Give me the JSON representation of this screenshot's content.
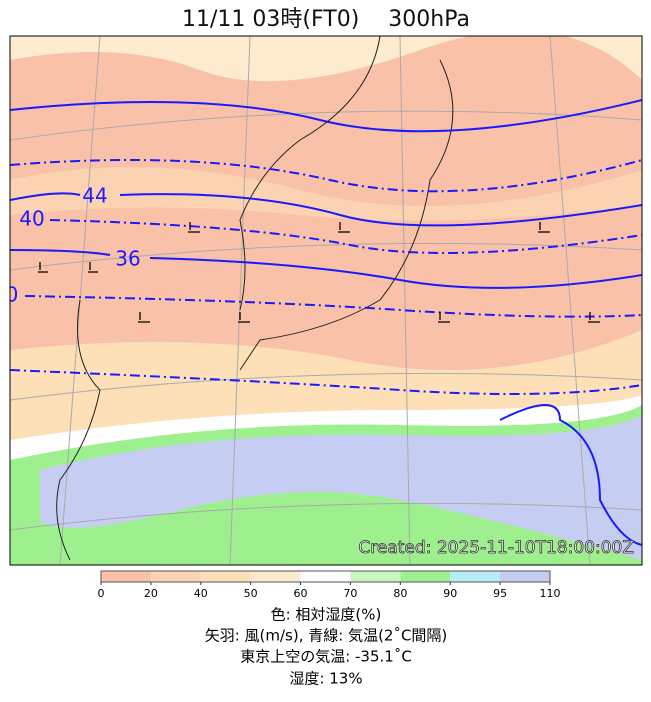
{
  "header": {
    "title": "11/11  03時(FT0)　 300hPa"
  },
  "map": {
    "contour_labels": [
      "44",
      "40",
      "36",
      "0"
    ],
    "credit": "Created: 2025-11-10T18:00:00Z"
  },
  "colorbar": {
    "ticks": [
      "0",
      "20",
      "40",
      "50",
      "60",
      "70",
      "80",
      "90",
      "95",
      "110"
    ],
    "colors": [
      "#f9c1a8",
      "#fcd3b2",
      "#fde0b8",
      "#fdebd0",
      "#ffffff",
      "#c8f5c0",
      "#9ef08f",
      "#b8ecf7",
      "#c5cdf2"
    ]
  },
  "caption": [
    "色: 相対湿度(%)",
    "矢羽: 風(m/s),  青線: 気温(2˚C間隔)",
    "東京上空の気温: -35.1˚C",
    "湿度: 13%"
  ]
}
